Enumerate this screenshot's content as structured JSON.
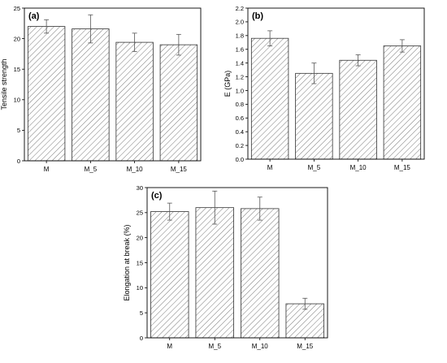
{
  "chart_data": [
    {
      "panel": "(a)",
      "type": "bar",
      "categories": [
        "M",
        "M_5",
        "M_10",
        "M_15"
      ],
      "values": [
        22.0,
        21.6,
        19.4,
        19.0
      ],
      "errors": [
        1.1,
        2.3,
        1.5,
        1.7
      ],
      "title": "",
      "xlabel": "",
      "ylabel": "Tensile strength",
      "ylim": [
        0,
        25
      ],
      "yticks": [
        0,
        5,
        10,
        15,
        20,
        25
      ],
      "grid": false,
      "pattern": "diagonal-hatch"
    },
    {
      "panel": "(b)",
      "type": "bar",
      "categories": [
        "M",
        "M_5",
        "M_10",
        "M_15"
      ],
      "values": [
        1.76,
        1.25,
        1.44,
        1.65
      ],
      "errors": [
        0.11,
        0.15,
        0.08,
        0.09
      ],
      "title": "",
      "xlabel": "",
      "ylabel": "E (GPa)",
      "ylim": [
        0,
        2.2
      ],
      "yticks": [
        0.0,
        0.2,
        0.4,
        0.6,
        0.8,
        1.0,
        1.2,
        1.4,
        1.6,
        1.8,
        2.0,
        2.2
      ],
      "grid": false,
      "pattern": "diagonal-hatch"
    },
    {
      "panel": "(c)",
      "type": "bar",
      "categories": [
        "M",
        "M_5",
        "M_10",
        "M_15"
      ],
      "values": [
        25.2,
        26.0,
        25.8,
        6.8
      ],
      "errors": [
        1.7,
        3.3,
        2.3,
        1.1
      ],
      "title": "",
      "xlabel": "",
      "ylabel": "Elongation at break (%)",
      "ylim": [
        0,
        30
      ],
      "yticks": [
        0,
        5,
        10,
        15,
        20,
        25,
        30
      ],
      "grid": false,
      "pattern": "diagonal-hatch"
    }
  ],
  "style": {
    "bar_fill": "#ffffff",
    "bar_stroke": "#333333",
    "hatch_color": "#555555",
    "axis_color": "#000000",
    "error_color": "#555555"
  }
}
